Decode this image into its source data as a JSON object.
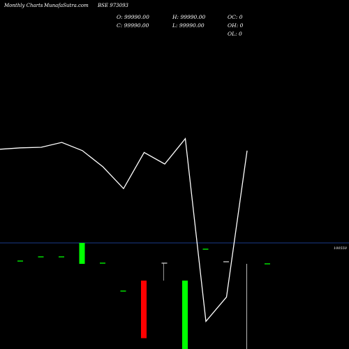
{
  "header": {
    "period": "Monthly Charts",
    "source": "MunafaSutra.com",
    "symbol": "BSE 973093"
  },
  "ohlc": {
    "open": "O: 99990.00",
    "high": "H: 99990.00",
    "oc": "OC: 0",
    "close": "C: 99990.00",
    "low": "L: 99990.00",
    "oh": "OH: 0",
    "ol": "OL: 0"
  },
  "colors": {
    "background": "#000000",
    "line": "#ffffff",
    "up": "#00ff00",
    "down": "#ff0000",
    "volume_line": "#1a3a8a"
  },
  "chart_data": {
    "type": "line",
    "price_line": {
      "x": [
        0,
        1,
        2,
        3,
        4,
        5,
        6,
        7,
        8,
        9,
        10,
        11,
        12
      ],
      "y": [
        69.1,
        70.1,
        70.5,
        74.0,
        68.1,
        56.5,
        40.9,
        66.8,
        58.5,
        76.7,
        -54.2,
        -36.8,
        68.1
      ]
    },
    "volume_reference_label": "100550",
    "volume_bars": [
      {
        "x": 0,
        "volume": 0,
        "color": "up"
      },
      {
        "x": 1,
        "volume": 0,
        "color": "up"
      },
      {
        "x": 2,
        "volume": 0,
        "color": "up"
      },
      {
        "x": 3,
        "volume": 100550,
        "color": "up"
      },
      {
        "x": 4,
        "volume": 0,
        "color": "up"
      },
      {
        "x": 5,
        "volume": 0,
        "color": "up"
      },
      {
        "x": 6,
        "volume": 220000,
        "color": "down"
      },
      {
        "x": 7,
        "volume": 0,
        "color": "neutral"
      },
      {
        "x": 8,
        "volume": 320000,
        "color": "up"
      },
      {
        "x": 9,
        "volume": 0,
        "color": "up"
      },
      {
        "x": 10,
        "volume": 0,
        "color": "neutral"
      },
      {
        "x": 11,
        "volume": 400000,
        "color": "neutral"
      },
      {
        "x": 12,
        "volume": 0,
        "color": "up"
      }
    ]
  }
}
